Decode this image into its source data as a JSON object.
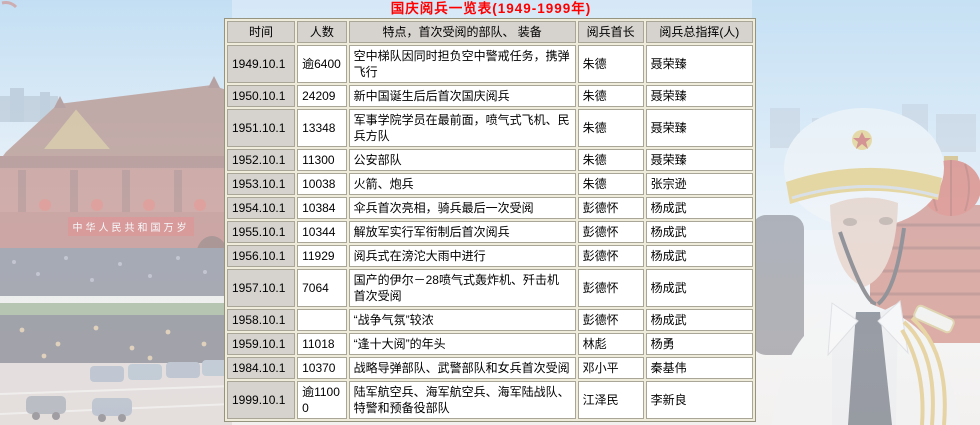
{
  "page": {
    "title": "国庆阅兵一览表(1949-1999年)"
  },
  "colors": {
    "title_red": "#ff0000",
    "header_cell_bg": "#d6d3ce",
    "table_frame_bg": "#f0ecdb",
    "cell_border": "#a9a698",
    "body_cell_bg": "#ffffff",
    "banner_red": "#c03028"
  },
  "table": {
    "headers": [
      "时间",
      "人数",
      "特点，首次受阅的部队、 装备",
      "阅兵首长",
      "阅兵总指挥(人)"
    ],
    "rows": [
      [
        "1949.10.1",
        "逾6400",
        "空中梯队因同时担负空中警戒任务，携弹飞行",
        "朱德",
        "聂荣臻"
      ],
      [
        "1950.10.1",
        "24209",
        "新中国诞生后后首次国庆阅兵",
        "朱德",
        "聂荣臻"
      ],
      [
        "1951.10.1",
        "13348",
        "军事学院学员在最前面，喷气式飞机、民兵方队",
        "朱德",
        "聂荣臻"
      ],
      [
        "1952.10.1",
        "11300",
        "公安部队",
        "朱德",
        "聂荣臻"
      ],
      [
        "1953.10.1",
        "10038",
        "火箭、炮兵",
        "朱德",
        "张宗逊"
      ],
      [
        "1954.10.1",
        "10384",
        "伞兵首次亮相，骑兵最后一次受阅",
        "彭德怀",
        "杨成武"
      ],
      [
        "1955.10.1",
        "10344",
        "解放军实行军衔制后首次阅兵",
        "彭德怀",
        "杨成武"
      ],
      [
        "1956.10.1",
        "11929",
        "阅兵式在滂沱大雨中进行",
        "彭德怀",
        "杨成武"
      ],
      [
        "1957.10.1",
        "7064",
        "国产的伊尔－28喷气式轰炸机、歼击机首次受阅",
        "彭德怀",
        "杨成武"
      ],
      [
        "1958.10.1",
        "",
        "“战争气氛”较浓",
        "彭德怀",
        "杨成武"
      ],
      [
        "1959.10.1",
        "11018",
        "“逢十大阅”的年头",
        "林彪",
        "杨勇"
      ],
      [
        "1984.10.1",
        "10370",
        "战略导弹部队、武警部队和女兵首次受阅",
        "邓小平",
        "秦基伟"
      ],
      [
        "1999.10.1",
        "逾11000",
        "陆军航空兵、海军航空兵、海军陆战队、特警和预备役部队",
        "江泽民",
        "李新良"
      ]
    ]
  },
  "background": {
    "left_photo": "tiananmen-parade-photo",
    "right_photo": "honor-guard-soldier-photo",
    "banner_text": "中华人民共和国万岁"
  }
}
